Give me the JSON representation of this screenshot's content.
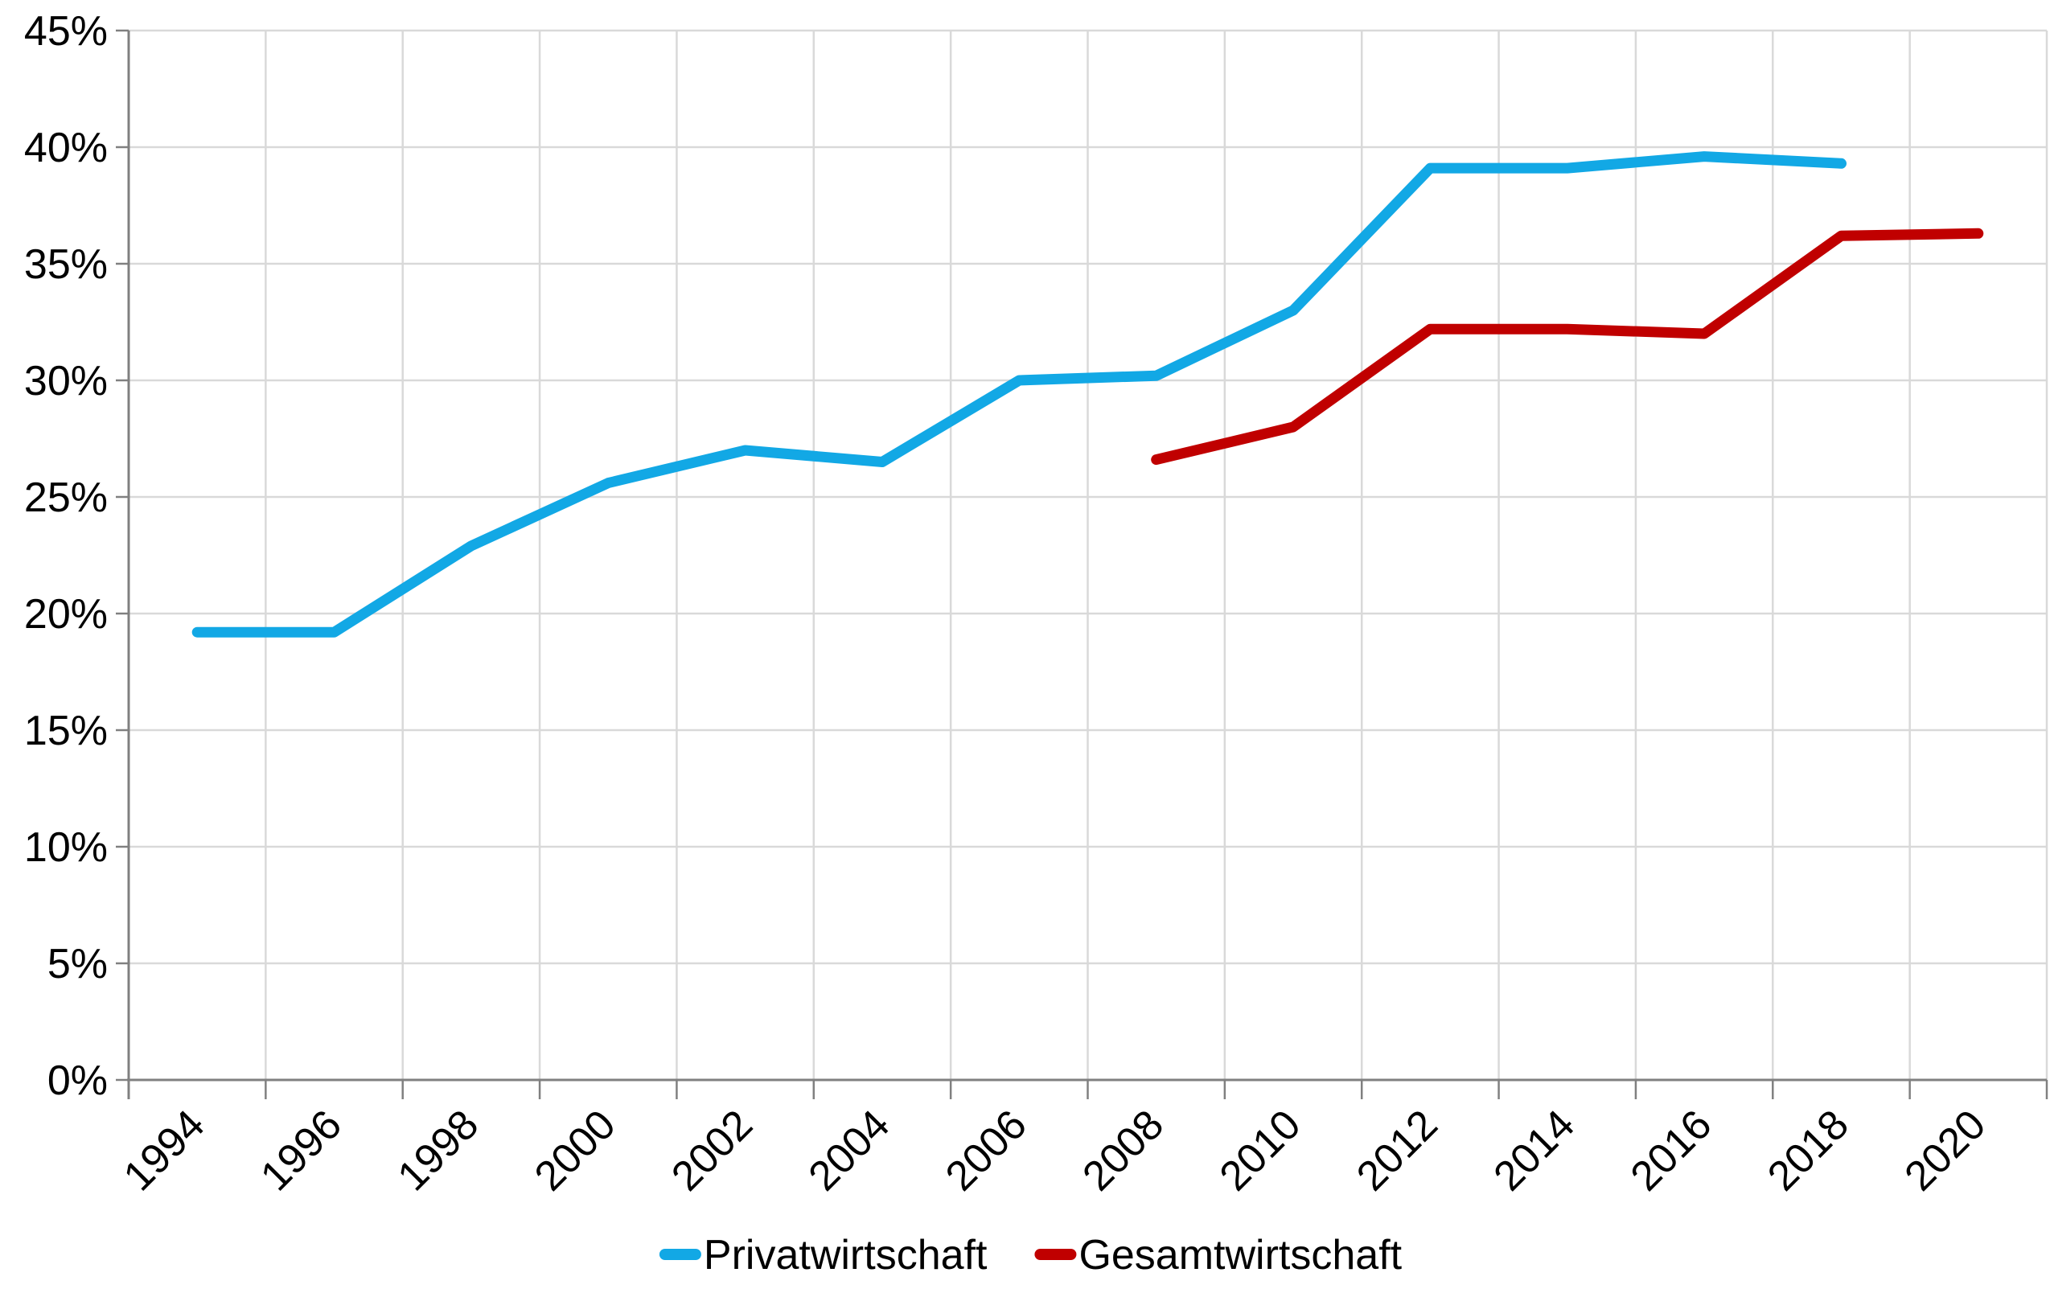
{
  "chart_data": {
    "type": "line",
    "categories": [
      "1994",
      "1996",
      "1998",
      "2000",
      "2002",
      "2004",
      "2006",
      "2008",
      "2010",
      "2012",
      "2014",
      "2016",
      "2018",
      "2020"
    ],
    "series": [
      {
        "name": "Privatwirtschaft",
        "color": "#12a8e5",
        "values": [
          19.2,
          19.2,
          22.9,
          25.6,
          27.0,
          26.5,
          30.0,
          30.2,
          33.0,
          39.1,
          39.1,
          39.6,
          39.3,
          null
        ]
      },
      {
        "name": "Gesamtwirtschaft",
        "color": "#c00000",
        "values": [
          null,
          null,
          null,
          null,
          null,
          null,
          null,
          26.6,
          28.0,
          32.2,
          32.2,
          32.0,
          36.2,
          36.3
        ]
      }
    ],
    "title": "",
    "xlabel": "",
    "ylabel": "",
    "ylim": [
      0,
      45
    ],
    "ytick_step": 5,
    "ytick_labels": [
      "0%",
      "5%",
      "10%",
      "15%",
      "20%",
      "25%",
      "30%",
      "35%",
      "40%",
      "45%"
    ],
    "grid": true,
    "legend_position": "bottom-center",
    "x_tick_interval_years": 2,
    "grid_color": "#d9d9d9",
    "axis_color": "#808080",
    "text_color": "#000000"
  }
}
